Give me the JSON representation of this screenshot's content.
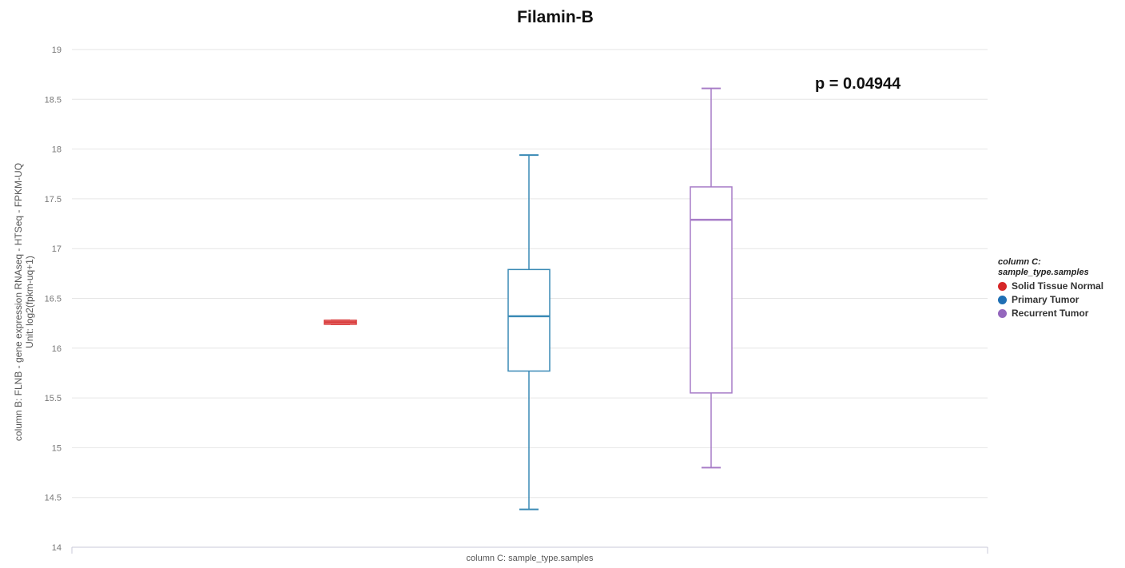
{
  "chart_data": {
    "type": "boxplot",
    "title": "Filamin-B",
    "annotation": "p = 0.04944",
    "ylabel": [
      "column B: FLNB - gene expression RNAseq - HTSeq - FPKM-UQ",
      "Unit: log2(fpkm-uq+1)"
    ],
    "xlabel": "column C: sample_type.samples",
    "ylim": [
      14,
      19
    ],
    "yticks": [
      14,
      14.5,
      15,
      15.5,
      16,
      16.5,
      17,
      17.5,
      18,
      18.5,
      19
    ],
    "grid": true,
    "legend": {
      "title_line1": "column C:",
      "title_line2": "sample_type.samples",
      "placement": "right"
    },
    "series": [
      {
        "name": "Solid Tissue Normal",
        "color": "#d93a3a",
        "min": 16.24,
        "q1": 16.24,
        "median": 16.26,
        "q3": 16.28,
        "max": 16.28
      },
      {
        "name": "Primary Tumor",
        "color": "#3a8ab5",
        "min": 14.38,
        "q1": 15.77,
        "median": 16.32,
        "q3": 16.79,
        "max": 17.94
      },
      {
        "name": "Recurrent Tumor",
        "color": "#a77cc7",
        "min": 14.8,
        "q1": 15.55,
        "median": 17.29,
        "q3": 17.62,
        "max": 18.61
      }
    ],
    "legend_dot_colors": [
      "#d62728",
      "#1f6fb4",
      "#9467bd"
    ]
  }
}
